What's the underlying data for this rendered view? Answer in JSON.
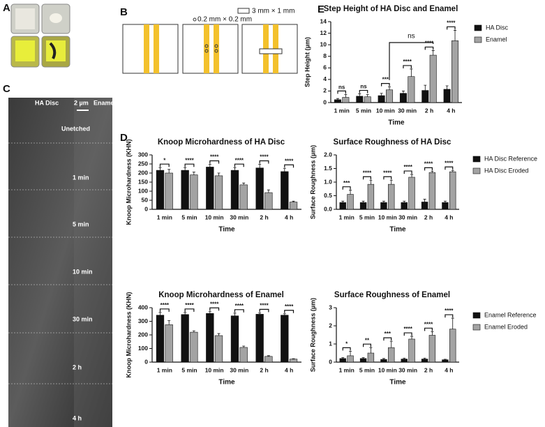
{
  "figure": {
    "panel_labels": [
      "A",
      "B",
      "C",
      "D",
      "E"
    ],
    "b_labels": [
      "0.2 mm × 0.2 mm",
      "3 mm × 1 mm"
    ],
    "c_headers": [
      "HA Disc",
      "2 µm",
      "Enamel"
    ],
    "c_rows": [
      "Unetched",
      "1 min",
      "5 min",
      "10 min",
      "30 min",
      "2 h",
      "4 h"
    ]
  },
  "chart_data": [
    {
      "type": "bar",
      "title": "Step Height of HA Disc and Enamel",
      "x_label": "Time",
      "y_label": "Step Height (µm)",
      "categories": [
        "1 min",
        "5 min",
        "10 min",
        "30 min",
        "2 h",
        "4 h"
      ],
      "ylim": [
        0,
        14
      ],
      "yticks": [
        0,
        2,
        4,
        6,
        8,
        10,
        12,
        14
      ],
      "series": [
        {
          "name": "HA Disc",
          "color": "#111111",
          "values": [
            0.5,
            1.1,
            1.2,
            1.6,
            2.1,
            2.3
          ],
          "errors": [
            0.2,
            0.4,
            0.4,
            0.4,
            0.9,
            0.6
          ]
        },
        {
          "name": "Enamel",
          "color": "#a3a3a3",
          "values": [
            0.9,
            1.0,
            2.2,
            4.5,
            8.2,
            10.7
          ],
          "errors": [
            0.5,
            0.4,
            0.5,
            1.3,
            0.8,
            1.8
          ]
        }
      ],
      "significance": [
        "ns",
        "ns",
        "***",
        "****",
        "****",
        "****"
      ],
      "comparison_label": "ns"
    },
    {
      "type": "bar",
      "title": "Knoop Microhardness of HA Disc",
      "x_label": "Time",
      "y_label": "Knoop Microhardness (KHN)",
      "categories": [
        "1 min",
        "5 min",
        "10 min",
        "30 min",
        "2 h",
        "4 h"
      ],
      "ylim": [
        0,
        300
      ],
      "yticks": [
        0,
        50,
        100,
        150,
        200,
        250,
        300
      ],
      "series": [
        {
          "color": "#111111",
          "values": [
            215,
            215,
            233,
            215,
            228,
            208
          ],
          "errors": [
            15,
            15,
            15,
            15,
            20,
            18
          ]
        },
        {
          "color": "#a3a3a3",
          "values": [
            200,
            190,
            185,
            135,
            92,
            40
          ],
          "errors": [
            20,
            15,
            15,
            10,
            15,
            5
          ]
        }
      ],
      "significance": [
        "*",
        "****",
        "****",
        "****",
        "****",
        "****"
      ]
    },
    {
      "type": "bar",
      "title": "Surface Roughness of HA Disc",
      "x_label": "Time",
      "y_label": "Surface Roughness (µm)",
      "categories": [
        "1 min",
        "5 min",
        "10 min",
        "30 min",
        "2 h",
        "4 h"
      ],
      "ylim": [
        0,
        2
      ],
      "yticks": [
        {
          "value": 0,
          "label": "0.0"
        },
        0.5,
        {
          "value": 1,
          "label": "1.0"
        },
        1.5,
        {
          "value": 2,
          "label": "2.0"
        }
      ],
      "series": [
        {
          "name": "HA Disc Reference",
          "color": "#111111",
          "values": [
            0.25,
            0.25,
            0.25,
            0.25,
            0.27,
            0.25
          ],
          "errors": [
            0.05,
            0.05,
            0.05,
            0.05,
            0.1,
            0.05
          ]
        },
        {
          "name": "HA Disc Eroded",
          "color": "#a3a3a3",
          "values": [
            0.55,
            0.92,
            0.92,
            1.18,
            1.35,
            1.38
          ],
          "errors": [
            0.15,
            0.15,
            0.15,
            0.1,
            0.05,
            0.05
          ]
        }
      ],
      "significance": [
        "***",
        "****",
        "****",
        "****",
        "****",
        "****"
      ]
    },
    {
      "type": "bar",
      "title": "Knoop  Microhardness of Enamel",
      "x_label": "Time",
      "y_label": "Knoop Microhardness (KHN)",
      "categories": [
        "1 min",
        "5 min",
        "10 min",
        "30 min",
        "2 h",
        "4 h"
      ],
      "ylim": [
        0,
        400
      ],
      "yticks": [
        0,
        100,
        200,
        300,
        400
      ],
      "series": [
        {
          "color": "#111111",
          "values": [
            345,
            350,
            358,
            340,
            352,
            345
          ],
          "errors": [
            20,
            15,
            15,
            20,
            10,
            10
          ]
        },
        {
          "color": "#a3a3a3",
          "values": [
            275,
            220,
            195,
            108,
            42,
            22
          ],
          "errors": [
            30,
            10,
            15,
            10,
            5,
            3
          ]
        }
      ],
      "significance": [
        "****",
        "****",
        "****",
        "****",
        "****",
        "****"
      ]
    },
    {
      "type": "bar",
      "title": "Surface Roughness of Enamel",
      "x_label": "Time",
      "y_label": "Surface Roughness  (µm)",
      "categories": [
        "1 min",
        "5 min",
        "10 min",
        "30 min",
        "2 h",
        "4 h"
      ],
      "ylim": [
        0,
        3
      ],
      "yticks": [
        0,
        1,
        2,
        3
      ],
      "series": [
        {
          "name": "Enamel Reference",
          "color": "#111111",
          "values": [
            0.2,
            0.2,
            0.15,
            0.17,
            0.17,
            0.13
          ],
          "errors": [
            0.05,
            0.05,
            0.05,
            0.05,
            0.05,
            0.03
          ]
        },
        {
          "name": "Enamel Eroded",
          "color": "#a3a3a3",
          "values": [
            0.35,
            0.5,
            0.8,
            1.27,
            1.48,
            1.82
          ],
          "errors": [
            0.25,
            0.3,
            0.35,
            0.15,
            0.2,
            0.6
          ]
        }
      ],
      "significance": [
        "*",
        "**",
        "***",
        "****",
        "****",
        "****"
      ]
    }
  ]
}
